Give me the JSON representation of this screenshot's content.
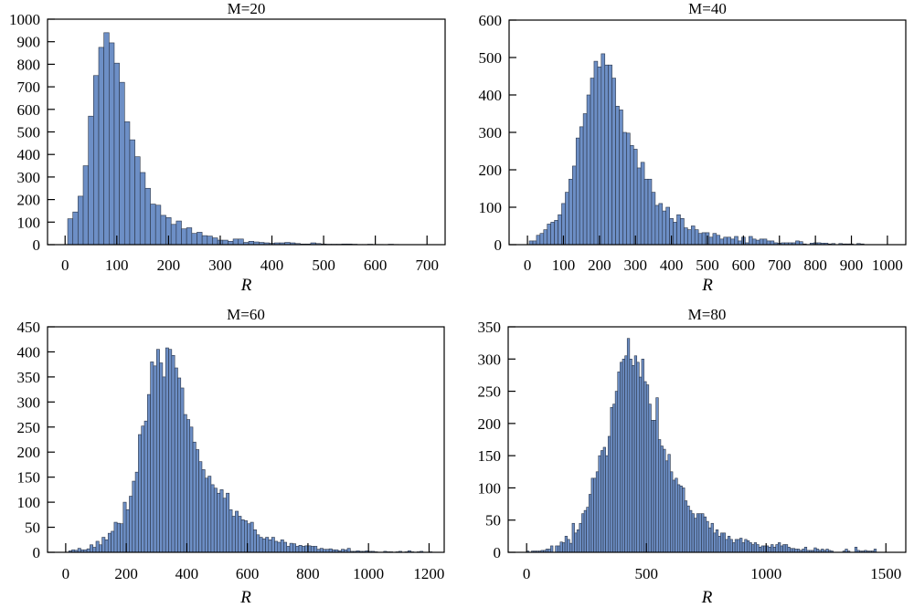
{
  "colors": {
    "bar_fill": "#6d8fc6",
    "bar_edge": "#2a3446"
  },
  "chart_data": [
    {
      "type": "bar",
      "title": "M=20",
      "xlabel": "R",
      "ylabel": "",
      "bin_start": 5,
      "bin_width": 10,
      "xlim": [
        -34,
        735
      ],
      "ylim": [
        0,
        1000
      ],
      "xticks": [
        0,
        100,
        200,
        300,
        400,
        500,
        600,
        700
      ],
      "yticks": [
        0,
        100,
        200,
        300,
        400,
        500,
        600,
        700,
        800,
        900,
        1000
      ],
      "values": [
        115,
        145,
        215,
        350,
        570,
        750,
        875,
        940,
        895,
        805,
        720,
        545,
        465,
        390,
        320,
        250,
        180,
        175,
        130,
        120,
        90,
        105,
        70,
        75,
        50,
        55,
        40,
        38,
        30,
        20,
        20,
        15,
        25,
        25,
        10,
        15,
        12,
        10,
        8,
        6,
        8,
        8,
        10,
        8,
        5,
        3,
        3,
        8,
        5,
        3,
        2,
        2,
        2,
        3,
        3,
        2,
        1,
        1,
        2,
        1,
        1,
        0,
        2,
        1,
        0
      ]
    },
    {
      "type": "bar",
      "title": "M=40",
      "xlabel": "R",
      "ylabel": "",
      "bin_start": 5,
      "bin_width": 10,
      "xlim": [
        -51,
        1051
      ],
      "ylim": [
        0,
        600
      ],
      "xticks": [
        0,
        100,
        200,
        300,
        400,
        500,
        600,
        700,
        800,
        900,
        1000
      ],
      "yticks": [
        0,
        100,
        200,
        300,
        400,
        500,
        600
      ],
      "values": [
        10,
        10,
        25,
        30,
        40,
        55,
        60,
        65,
        80,
        110,
        140,
        175,
        210,
        285,
        315,
        350,
        400,
        445,
        490,
        475,
        510,
        480,
        480,
        445,
        370,
        360,
        300,
        298,
        265,
        255,
        205,
        220,
        175,
        175,
        140,
        105,
        110,
        90,
        100,
        70,
        60,
        80,
        70,
        45,
        40,
        50,
        40,
        30,
        32,
        32,
        20,
        30,
        25,
        15,
        20,
        20,
        15,
        22,
        10,
        20,
        5,
        22,
        15,
        12,
        15,
        15,
        10,
        10,
        5,
        4,
        5,
        5,
        5,
        5,
        10,
        8,
        2,
        0,
        4,
        5,
        5,
        4,
        4,
        2,
        3,
        0,
        3,
        2,
        2,
        2,
        0,
        3,
        2,
        0
      ]
    },
    {
      "type": "bar",
      "title": "M=60",
      "xlabel": "R",
      "ylabel": "",
      "bin_start": 10,
      "bin_width": 10,
      "xlim": [
        -60,
        1250
      ],
      "ylim": [
        0,
        450
      ],
      "xticks": [
        0,
        200,
        400,
        600,
        800,
        1000,
        1200
      ],
      "yticks": [
        0,
        50,
        100,
        150,
        200,
        250,
        300,
        350,
        400,
        450
      ],
      "values": [
        3,
        5,
        4,
        8,
        5,
        5,
        7,
        15,
        10,
        22,
        15,
        30,
        25,
        38,
        42,
        60,
        58,
        57,
        100,
        85,
        112,
        142,
        160,
        235,
        252,
        262,
        315,
        380,
        372,
        405,
        378,
        350,
        408,
        405,
        393,
        368,
        348,
        328,
        275,
        265,
        250,
        220,
        205,
        181,
        165,
        148,
        152,
        135,
        128,
        118,
        125,
        108,
        118,
        85,
        72,
        82,
        72,
        65,
        63,
        57,
        60,
        45,
        35,
        30,
        27,
        30,
        25,
        30,
        22,
        20,
        25,
        20,
        12,
        18,
        17,
        12,
        14,
        12,
        13,
        13,
        12,
        12,
        6,
        8,
        6,
        6,
        7,
        5,
        5,
        3,
        6,
        5,
        8,
        2,
        2,
        3,
        2,
        2,
        3,
        2,
        2,
        1,
        0,
        0,
        2,
        1,
        1,
        0,
        1,
        2,
        0,
        1,
        3,
        1,
        0,
        1,
        2,
        0,
        0,
        1
      ]
    },
    {
      "type": "bar",
      "title": "M=80",
      "xlabel": "R",
      "ylabel": "",
      "bin_start": 0,
      "bin_width": 10,
      "xlim": [
        -77,
        1583
      ],
      "ylim": [
        0,
        350
      ],
      "xticks": [
        0,
        500,
        1000,
        1500
      ],
      "yticks": [
        0,
        50,
        100,
        150,
        200,
        250,
        300,
        350
      ],
      "values": [
        2,
        0,
        2,
        2,
        2,
        2,
        3,
        3,
        5,
        5,
        10,
        0,
        10,
        10,
        16,
        15,
        25,
        20,
        14,
        45,
        30,
        35,
        45,
        60,
        65,
        70,
        90,
        115,
        115,
        125,
        150,
        158,
        163,
        150,
        180,
        225,
        230,
        250,
        280,
        295,
        300,
        305,
        332,
        300,
        290,
        305,
        295,
        272,
        300,
        265,
        260,
        230,
        205,
        205,
        240,
        175,
        165,
        160,
        142,
        152,
        125,
        112,
        115,
        105,
        103,
        100,
        80,
        72,
        65,
        60,
        53,
        60,
        60,
        60,
        55,
        48,
        38,
        45,
        30,
        35,
        25,
        30,
        30,
        20,
        25,
        20,
        15,
        20,
        20,
        22,
        15,
        20,
        18,
        15,
        12,
        15,
        12,
        8,
        10,
        10,
        10,
        8,
        12,
        8,
        12,
        15,
        10,
        12,
        12,
        8,
        6,
        6,
        5,
        5,
        3,
        5,
        8,
        3,
        3,
        3,
        7,
        5,
        3,
        5,
        3,
        5,
        3,
        2,
        0,
        0,
        0,
        0,
        2,
        5,
        2,
        0,
        0,
        8,
        3,
        2,
        2,
        3,
        2,
        2,
        2,
        5
      ]
    }
  ]
}
